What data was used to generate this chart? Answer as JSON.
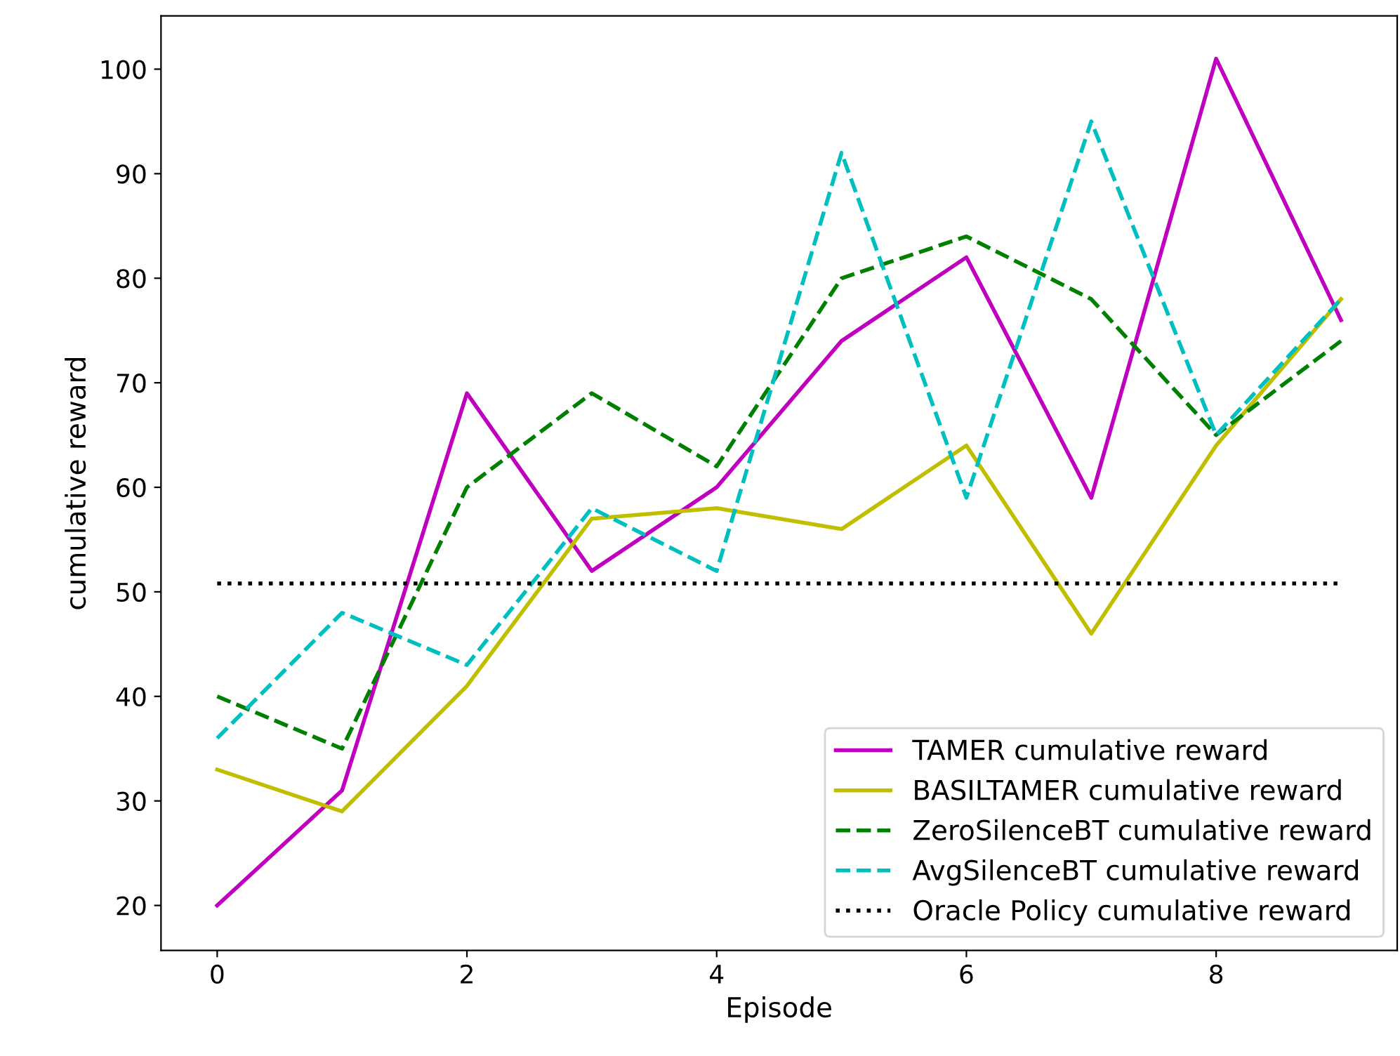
{
  "chart_data": {
    "type": "line",
    "xlabel": "Episode",
    "ylabel": "cumulative reward",
    "x": [
      0,
      1,
      2,
      3,
      4,
      5,
      6,
      7,
      8,
      9
    ],
    "series": [
      {
        "name": "TAMER cumulative reward",
        "color": "#bf00bf",
        "line_style": "solid",
        "values": [
          20,
          31,
          69,
          52,
          60,
          74,
          82,
          59,
          101,
          76
        ]
      },
      {
        "name": "BASILTAMER cumulative reward",
        "color": "#bfbf00",
        "line_style": "solid",
        "values": [
          33,
          29,
          41,
          57,
          58,
          56,
          64,
          46,
          64,
          78
        ]
      },
      {
        "name": "ZeroSilenceBT cumulative reward",
        "color": "#008000",
        "line_style": "dashed",
        "values": [
          40,
          35,
          60,
          69,
          62,
          80,
          84,
          78,
          65,
          74
        ]
      },
      {
        "name": "AvgSilenceBT cumulative reward",
        "color": "#00bfbf",
        "line_style": "dashed",
        "values": [
          36,
          48,
          43,
          58,
          52,
          92,
          59,
          95,
          65,
          78
        ]
      },
      {
        "name": "Oracle Policy cumulative reward",
        "color": "#000000",
        "line_style": "dotted",
        "values": [
          50.8,
          50.8,
          50.8,
          50.8,
          50.8,
          50.8,
          50.8,
          50.8,
          50.8,
          50.8
        ]
      }
    ],
    "xlim": [
      -0.45,
      9.45
    ],
    "ylim": [
      15.7,
      105.1
    ],
    "xticks": [
      0,
      2,
      4,
      6,
      8
    ],
    "yticks": [
      20,
      30,
      40,
      50,
      60,
      70,
      80,
      90,
      100
    ],
    "grid": false,
    "legend": "bottom right",
    "marker": "none"
  }
}
